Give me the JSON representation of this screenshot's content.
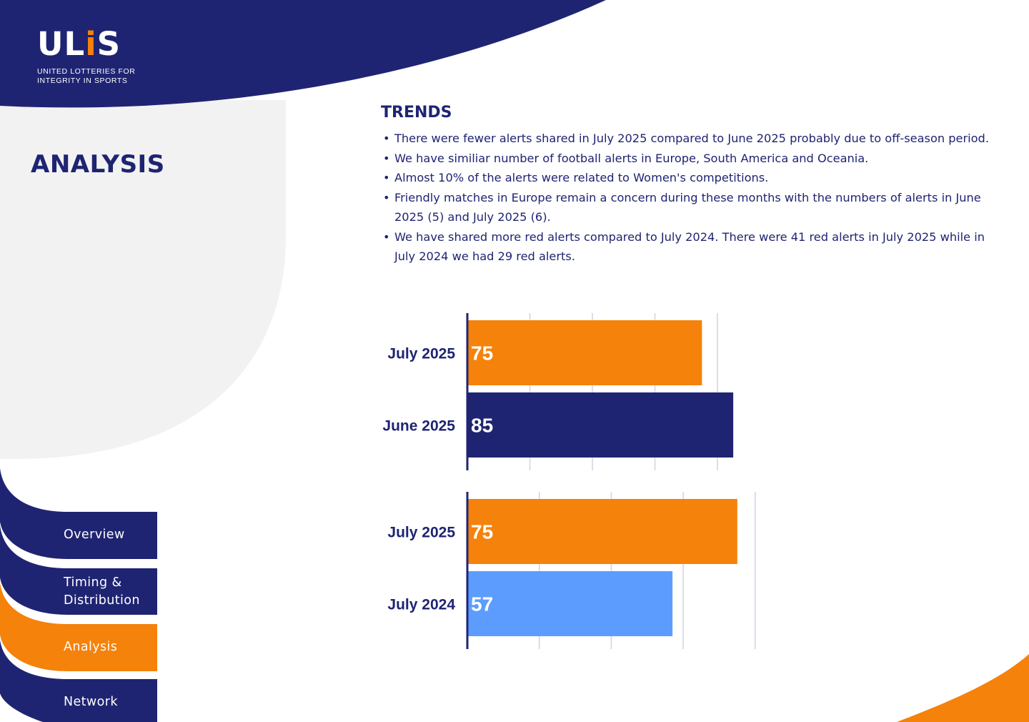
{
  "logo": {
    "wordmark": "ULiS",
    "tagline_line1": "UNITED LOTTERIES FOR",
    "tagline_line2": "INTEGRITY IN SPORTS"
  },
  "page_title": "ANALYSIS",
  "nav": {
    "items": [
      {
        "label": "Overview",
        "active": false
      },
      {
        "label_line1": "Timing &",
        "label_line2": "Distribution",
        "active": false
      },
      {
        "label": "Analysis",
        "active": true
      },
      {
        "label": "Network",
        "active": false
      }
    ]
  },
  "trends": {
    "title": "TRENDS",
    "bullets": [
      "There were fewer alerts shared in July 2025 compared to June 2025 probably due to off-season period.",
      "We have similiar number of football alerts in Europe, South America and Oceania.",
      "Almost 10% of the alerts were related to Women's competitions.",
      "Friendly matches in Europe remain a concern during these months with the numbers of alerts in June 2025 (5) and July 2025 (6).",
      "We have shared more red alerts compared to July 2024. There were 41 red alerts in July 2025 while in July 2024 we had 29 red alerts."
    ]
  },
  "colors": {
    "navy": "#1f2472",
    "orange": "#f5820a",
    "light_blue": "#5d9cff",
    "light_gray": "#f2f2f2",
    "grid": "#cfd2e6"
  },
  "chart_data": [
    {
      "type": "bar",
      "orientation": "horizontal",
      "categories": [
        "July 2025",
        "June 2025"
      ],
      "values": [
        75,
        85
      ],
      "colors": [
        "#f5820a",
        "#1f2472"
      ],
      "xlim": [
        0,
        90
      ],
      "grid": true,
      "data_labels": [
        "75",
        "85"
      ]
    },
    {
      "type": "bar",
      "orientation": "horizontal",
      "categories": [
        "July 2025",
        "July 2024"
      ],
      "values": [
        75,
        57
      ],
      "colors": [
        "#f5820a",
        "#5d9cff"
      ],
      "xlim": [
        0,
        80
      ],
      "grid": true,
      "data_labels": [
        "75",
        "57"
      ]
    }
  ]
}
